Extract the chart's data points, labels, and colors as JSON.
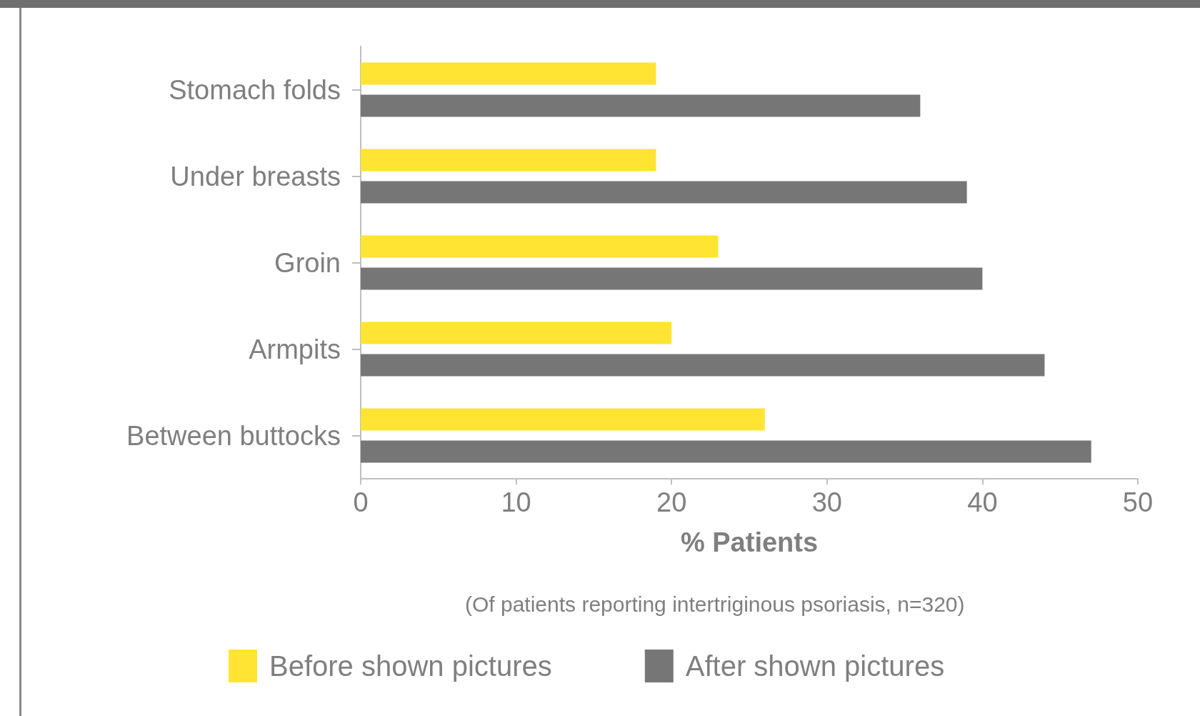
{
  "chart_data": {
    "type": "bar",
    "orientation": "horizontal",
    "xlabel": "% Patients",
    "annotations": [
      "(Of patients reporting intertriginous psoriasis, n=320)"
    ],
    "categories": [
      "Stomach folds",
      "Under breasts",
      "Groin",
      "Armpits",
      "Between buttocks"
    ],
    "series": [
      {
        "name": "Before shown pictures",
        "color": "#ffe433",
        "values": [
          19,
          19,
          23,
          20,
          26
        ]
      },
      {
        "name": "After shown pictures",
        "color": "#767676",
        "values": [
          36,
          39,
          40,
          44,
          47
        ]
      }
    ],
    "xlim": [
      0,
      50
    ],
    "xticks": [
      0,
      10,
      20,
      30,
      40,
      50
    ],
    "grid": false,
    "legend": "bottom"
  }
}
